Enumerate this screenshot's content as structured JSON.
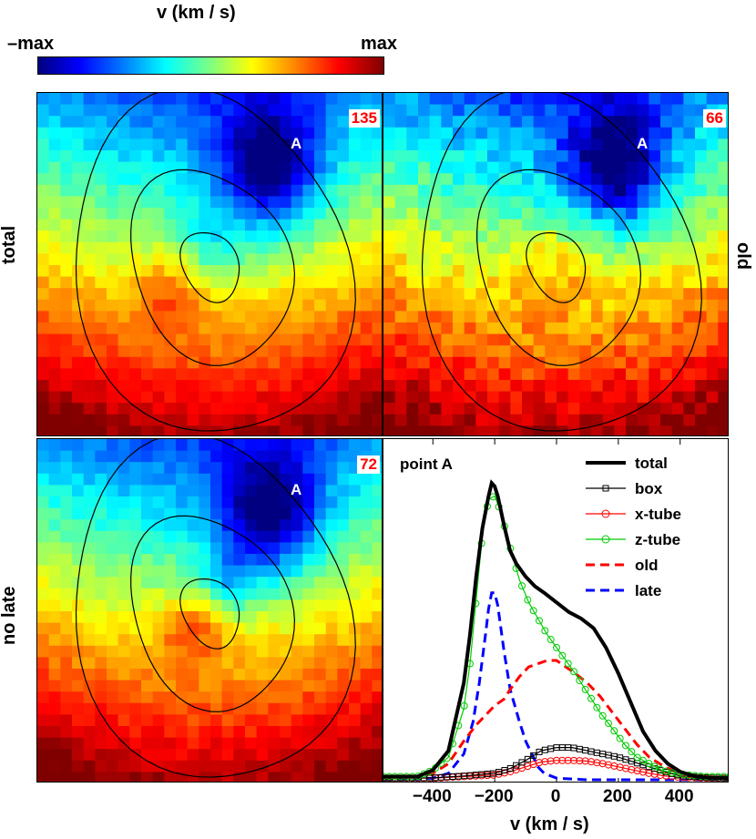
{
  "colorbar": {
    "title": "v (km / s)",
    "min_label": "–max",
    "max_label": "max"
  },
  "panels": {
    "total": {
      "label": "total",
      "number": "135",
      "point": "A"
    },
    "old": {
      "label": "old",
      "number": "66",
      "point": "A"
    },
    "nolate": {
      "label": "no late",
      "number": "72",
      "point": "A"
    }
  },
  "chart_data": {
    "type": "line",
    "title": "point A",
    "xlabel": "v (km / s)",
    "ylabel": "",
    "xlim": [
      -560,
      560
    ],
    "ylim": [
      0,
      1.0
    ],
    "xticks": [
      "-400",
      "-200",
      "0",
      "200",
      "400"
    ],
    "series": [
      {
        "name": "total",
        "color": "#000000",
        "style": "solid-thick",
        "marker": "none",
        "x": [
          -560,
          -450,
          -400,
          -350,
          -300,
          -280,
          -260,
          -240,
          -220,
          -210,
          -200,
          -190,
          -170,
          -150,
          -130,
          -100,
          -70,
          -40,
          0,
          40,
          80,
          120,
          160,
          200,
          240,
          280,
          320,
          360,
          400,
          450,
          500,
          560
        ],
        "y": [
          0.01,
          0.01,
          0.03,
          0.09,
          0.3,
          0.45,
          0.63,
          0.78,
          0.88,
          0.92,
          0.91,
          0.88,
          0.79,
          0.71,
          0.67,
          0.63,
          0.6,
          0.58,
          0.55,
          0.52,
          0.5,
          0.47,
          0.41,
          0.33,
          0.24,
          0.15,
          0.09,
          0.05,
          0.025,
          0.01,
          0.006,
          0.005
        ]
      },
      {
        "name": "box",
        "color": "#000000",
        "style": "solid-thin",
        "marker": "square",
        "x": [
          -560,
          -400,
          -300,
          -200,
          -150,
          -100,
          -50,
          0,
          50,
          100,
          150,
          200,
          250,
          300,
          350,
          400,
          500,
          560
        ],
        "y": [
          0.005,
          0.006,
          0.012,
          0.02,
          0.035,
          0.06,
          0.09,
          0.1,
          0.1,
          0.09,
          0.08,
          0.07,
          0.055,
          0.04,
          0.025,
          0.012,
          0.006,
          0.005
        ]
      },
      {
        "name": "x-tube",
        "color": "#ff0000",
        "style": "solid-thin",
        "marker": "circle",
        "x": [
          -560,
          -400,
          -300,
          -200,
          -150,
          -100,
          -50,
          0,
          50,
          100,
          150,
          200,
          250,
          300,
          350,
          400,
          500,
          560
        ],
        "y": [
          0.005,
          0.005,
          0.01,
          0.015,
          0.025,
          0.04,
          0.055,
          0.06,
          0.06,
          0.058,
          0.05,
          0.04,
          0.03,
          0.02,
          0.012,
          0.008,
          0.005,
          0.005
        ]
      },
      {
        "name": "z-tube",
        "color": "#00cc00",
        "style": "solid-thin",
        "marker": "circle",
        "x": [
          -560,
          -450,
          -400,
          -350,
          -300,
          -280,
          -260,
          -240,
          -220,
          -200,
          -180,
          -150,
          -120,
          -90,
          -60,
          -30,
          0,
          30,
          60,
          100,
          140,
          180,
          220,
          260,
          300,
          340,
          380,
          420,
          480,
          560
        ],
        "y": [
          0.01,
          0.01,
          0.03,
          0.07,
          0.22,
          0.36,
          0.56,
          0.76,
          0.87,
          0.88,
          0.83,
          0.72,
          0.62,
          0.55,
          0.5,
          0.45,
          0.41,
          0.37,
          0.33,
          0.27,
          0.21,
          0.16,
          0.11,
          0.07,
          0.05,
          0.03,
          0.02,
          0.015,
          0.01,
          0.01
        ]
      },
      {
        "name": "old",
        "color": "#ff0000",
        "style": "dashed",
        "marker": "none",
        "x": [
          -560,
          -450,
          -400,
          -350,
          -300,
          -260,
          -230,
          -200,
          -170,
          -150,
          -120,
          -90,
          -60,
          -30,
          0,
          30,
          60,
          100,
          140,
          180,
          220,
          260,
          300,
          350,
          400,
          450,
          560
        ],
        "y": [
          0.005,
          0.01,
          0.02,
          0.05,
          0.12,
          0.17,
          0.2,
          0.23,
          0.25,
          0.28,
          0.32,
          0.35,
          0.36,
          0.37,
          0.37,
          0.35,
          0.33,
          0.3,
          0.26,
          0.21,
          0.16,
          0.11,
          0.07,
          0.04,
          0.02,
          0.01,
          0.005
        ]
      },
      {
        "name": "late",
        "color": "#0000ff",
        "style": "dashed",
        "marker": "none",
        "x": [
          -560,
          -400,
          -350,
          -300,
          -270,
          -250,
          -230,
          -220,
          -210,
          -200,
          -190,
          -170,
          -150,
          -120,
          -100,
          -80,
          -60,
          -40,
          0,
          100,
          200,
          300,
          560
        ],
        "y": [
          0.0,
          0.005,
          0.02,
          0.08,
          0.18,
          0.3,
          0.45,
          0.53,
          0.58,
          0.58,
          0.54,
          0.4,
          0.28,
          0.18,
          0.12,
          0.08,
          0.04,
          0.02,
          0.005,
          0.0,
          0.0,
          0.0,
          0.0
        ]
      }
    ]
  }
}
